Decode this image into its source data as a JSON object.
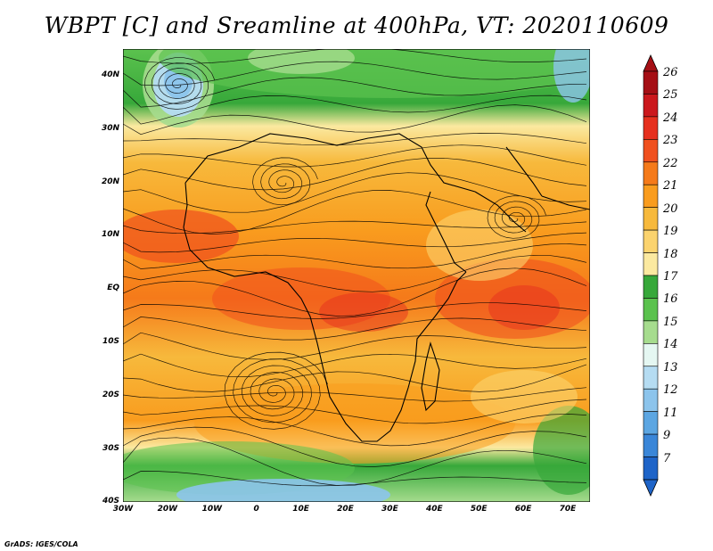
{
  "title": "WBPT [C] and Sreamline at 400hPa, VT: 2020110609",
  "credit": "GrADS: IGES/COLA",
  "map": {
    "lat_labels": [
      "40N",
      "30N",
      "20N",
      "10N",
      "EQ",
      "10S",
      "20S",
      "30S",
      "40S"
    ],
    "lon_labels": [
      "30W",
      "20W",
      "10W",
      "0",
      "10E",
      "20E",
      "30E",
      "40E",
      "50E",
      "60E",
      "70E"
    ],
    "lon_range": [
      -30,
      75
    ],
    "lat_range": [
      -40,
      45
    ],
    "shading_field": "wet-bulb potential temperature",
    "overlay": "streamlines"
  },
  "colorbar": {
    "levels": [
      "26",
      "25",
      "24",
      "23",
      "22",
      "21",
      "20",
      "19",
      "18",
      "17",
      "16",
      "15",
      "14",
      "13",
      "12",
      "11",
      "9",
      "7"
    ],
    "colors": [
      "#a50f15",
      "#cb181d",
      "#e6301e",
      "#f0501e",
      "#f57a1a",
      "#f99c1e",
      "#f7b93c",
      "#fbd36e",
      "#fbe9a0",
      "#37a83a",
      "#5bc24e",
      "#a6dc8e",
      "#e5f7f2",
      "#b5dcf2",
      "#8cc4ec",
      "#5ca6e2",
      "#3a86d8",
      "#1e64c8"
    ]
  }
}
